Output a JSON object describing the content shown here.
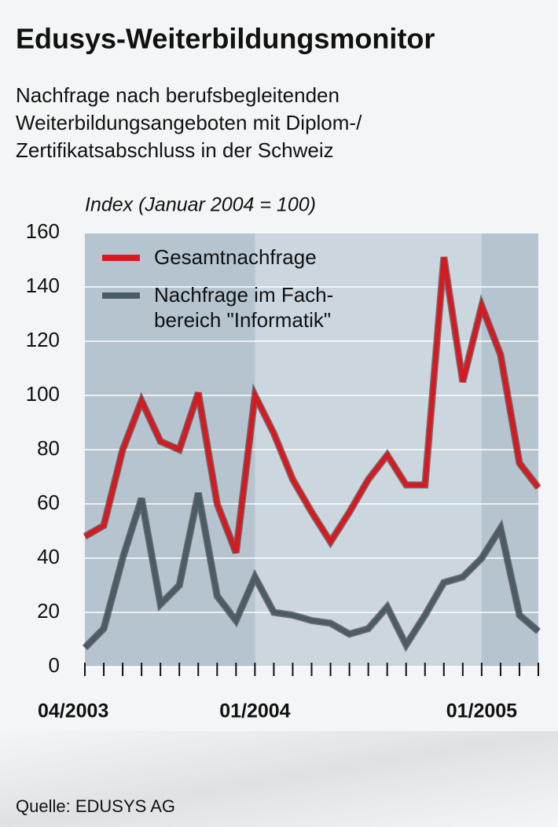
{
  "chart_data": {
    "type": "line",
    "title": "Edusys-Weiterbildungsmonitor",
    "subtitle": "Nachfrage nach berufsbegleitenden\nWeiterbildungsangeboten mit Diplom-/\nZertifikatsabschluss in der Schweiz",
    "y_label": "Index (Januar 2004 = 100)",
    "source": "Quelle: EDUSYS AG",
    "categories": [
      "04/2003",
      null,
      null,
      null,
      null,
      null,
      null,
      null,
      null,
      "01/2004",
      null,
      null,
      null,
      null,
      null,
      null,
      null,
      null,
      null,
      null,
      null,
      "01/2005",
      null,
      null,
      null
    ],
    "series": [
      {
        "name": "Gesamtnachfrage",
        "color": "#d71920",
        "values": [
          48,
          52,
          80,
          98,
          83,
          80,
          101,
          60,
          42,
          100,
          86,
          69,
          57,
          46,
          57,
          69,
          78,
          67,
          67,
          151,
          105,
          133,
          115,
          75,
          66
        ]
      },
      {
        "name": "Nachfrage im Fach-\nbereich \"Informatik\"",
        "color": "#4a5c66",
        "values": [
          7,
          14,
          40,
          62,
          23,
          30,
          64,
          26,
          17,
          33,
          20,
          19,
          17,
          16,
          12,
          14,
          22,
          8,
          19,
          31,
          33,
          40,
          51,
          19,
          13
        ]
      }
    ],
    "ylim": [
      0,
      160
    ],
    "yticks": [
      0,
      20,
      40,
      60,
      80,
      100,
      120,
      140,
      160
    ],
    "grid": true
  }
}
